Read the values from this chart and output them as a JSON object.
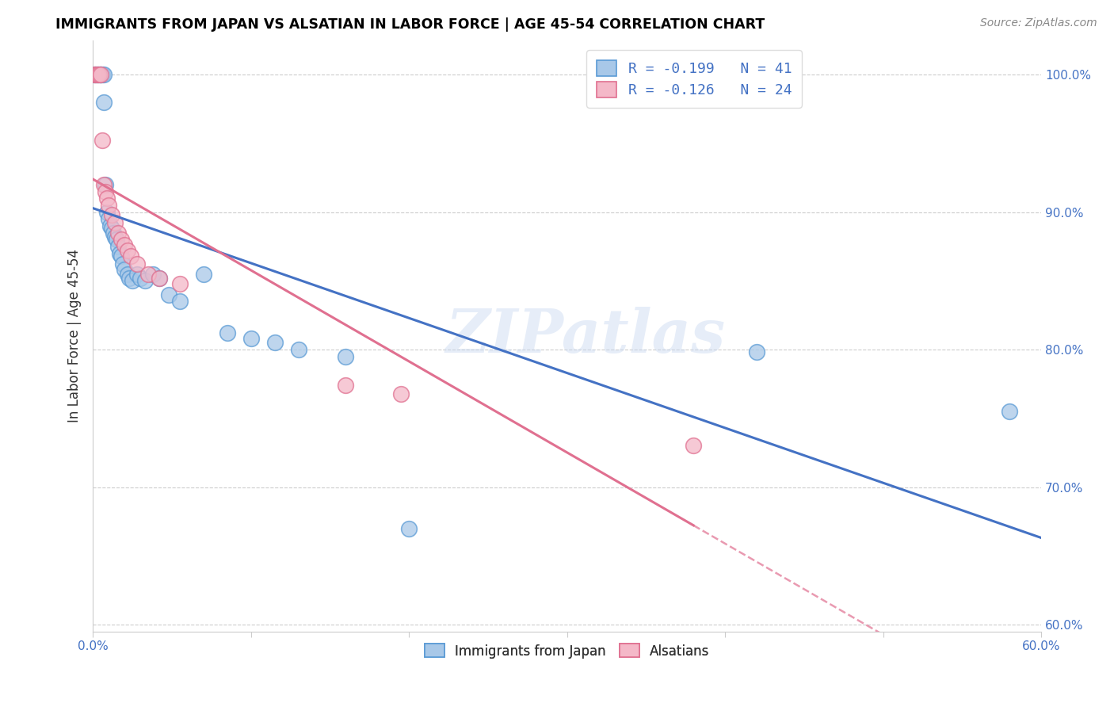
{
  "title": "IMMIGRANTS FROM JAPAN VS ALSATIAN IN LABOR FORCE | AGE 45-54 CORRELATION CHART",
  "source": "Source: ZipAtlas.com",
  "ylabel": "In Labor Force | Age 45-54",
  "xlim": [
    0.0,
    0.6
  ],
  "ylim": [
    0.595,
    1.025
  ],
  "yticks": [
    0.6,
    0.7,
    0.8,
    0.9,
    1.0
  ],
  "yticklabels": [
    "60.0%",
    "70.0%",
    "80.0%",
    "90.0%",
    "100.0%"
  ],
  "xticks": [
    0.0,
    0.1,
    0.2,
    0.3,
    0.4,
    0.5,
    0.6
  ],
  "xticklabels": [
    "0.0%",
    "",
    "",
    "",
    "",
    "",
    "60.0%"
  ],
  "legend_line1": "R = -0.199   N = 41",
  "legend_line2": "R = -0.126   N = 24",
  "color_japan_fill": "#A8C8E8",
  "color_japan_edge": "#5B9BD5",
  "color_alsatian_fill": "#F4B8C8",
  "color_alsatian_edge": "#E07090",
  "color_japan_line": "#4472C4",
  "color_alsatian_line": "#E07090",
  "watermark": "ZIPatlas",
  "japan_x": [
    0.001,
    0.002,
    0.003,
    0.004,
    0.005,
    0.005,
    0.006,
    0.007,
    0.007,
    0.008,
    0.009,
    0.01,
    0.011,
    0.012,
    0.013,
    0.014,
    0.015,
    0.016,
    0.017,
    0.018,
    0.019,
    0.02,
    0.022,
    0.023,
    0.025,
    0.028,
    0.03,
    0.033,
    0.038,
    0.042,
    0.048,
    0.055,
    0.07,
    0.085,
    0.1,
    0.115,
    0.13,
    0.16,
    0.2,
    0.42,
    0.58
  ],
  "japan_y": [
    1.0,
    1.0,
    1.0,
    1.0,
    1.0,
    1.0,
    1.0,
    1.0,
    0.98,
    0.92,
    0.9,
    0.895,
    0.89,
    0.888,
    0.885,
    0.882,
    0.88,
    0.875,
    0.87,
    0.868,
    0.862,
    0.858,
    0.855,
    0.852,
    0.85,
    0.855,
    0.852,
    0.85,
    0.855,
    0.852,
    0.84,
    0.835,
    0.855,
    0.812,
    0.808,
    0.805,
    0.8,
    0.795,
    0.67,
    0.798,
    0.755
  ],
  "alsatian_x": [
    0.001,
    0.002,
    0.003,
    0.004,
    0.005,
    0.006,
    0.007,
    0.008,
    0.009,
    0.01,
    0.012,
    0.014,
    0.016,
    0.018,
    0.02,
    0.022,
    0.024,
    0.028,
    0.035,
    0.042,
    0.055,
    0.16,
    0.195,
    0.38
  ],
  "alsatian_y": [
    1.0,
    1.0,
    1.0,
    1.0,
    1.0,
    0.952,
    0.92,
    0.915,
    0.91,
    0.905,
    0.898,
    0.892,
    0.885,
    0.88,
    0.876,
    0.872,
    0.868,
    0.862,
    0.855,
    0.852,
    0.848,
    0.774,
    0.768,
    0.73
  ]
}
